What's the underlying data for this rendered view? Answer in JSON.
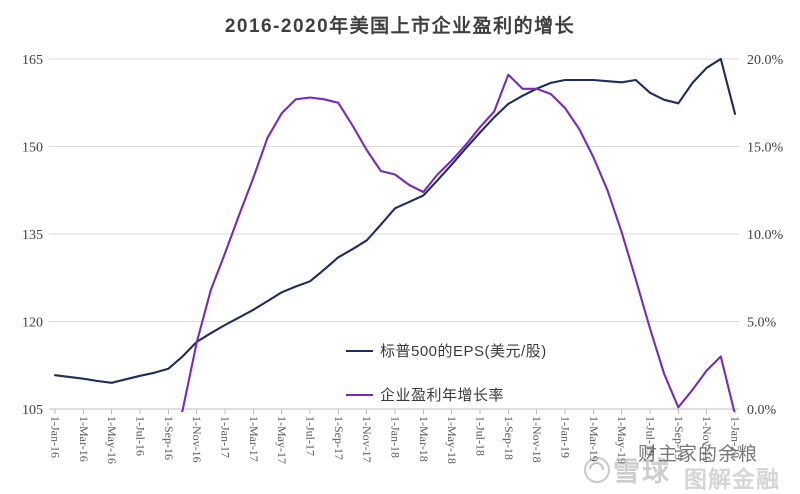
{
  "title": "2016-2020年美国上市企业盈利的增长",
  "legend": [
    {
      "label": "标普500的EPS(美元/股)",
      "color": "#1c2d5e"
    },
    {
      "label": "企业盈利年增长率",
      "color": "#772bb8"
    }
  ],
  "watermark": {
    "logo_icon": "snowball-circle",
    "brand": "雪球",
    "channel": "图解金融",
    "author": "财主家的余粮"
  },
  "colors": {
    "background": "#ffffff",
    "grid": "#d9d9d9",
    "axis": "#bfbfbf",
    "axis_text": "#404040",
    "x_tick_text": "#595959",
    "title_text": "#3f3f3f",
    "series_eps": "#1c2d5e",
    "series_growth": "#772bb8"
  },
  "chart_data": {
    "type": "line",
    "title": "2016-2020年美国上市企业盈利的增长",
    "grid": "horizontal",
    "legend_position": "inside-center-right",
    "x_start": "2016-01",
    "x_end": "2020-01",
    "x_step_months": 1,
    "n_points": 49,
    "x_tick_labels": [
      "1-Jan-16",
      "1-Mar-16",
      "1-May-16",
      "1-Jul-16",
      "1-Sep-16",
      "1-Nov-16",
      "1-Jan-17",
      "1-Mar-17",
      "1-May-17",
      "1-Jul-17",
      "1-Sep-17",
      "1-Nov-17",
      "1-Jan-18",
      "1-Mar-18",
      "1-May-18",
      "1-Jul-18",
      "1-Sep-18",
      "1-Nov-18",
      "1-Jan-19",
      "1-Mar-19",
      "1-May-19",
      "1-Jul-19",
      "1-Sep-19",
      "1-Nov-19",
      "1-Jan-20"
    ],
    "left_axis": {
      "ticks": [
        "165",
        "150",
        "135",
        "120",
        "105"
      ],
      "tick_values": [
        165,
        150,
        135,
        120,
        105
      ],
      "range": [
        105,
        165
      ]
    },
    "right_axis": {
      "ticks": [
        "20.0%",
        "15.0%",
        "10.0%",
        "5.0%",
        "0.0%"
      ],
      "tick_values": [
        20,
        15,
        10,
        5,
        0
      ],
      "range": [
        0,
        20
      ]
    },
    "series": [
      {
        "name": "标普500的EPS(美元/股)",
        "axis": "left",
        "color": "#1c2d5e",
        "values": [
          110.8,
          110.5,
          110.2,
          109.8,
          109.5,
          110.1,
          110.7,
          111.2,
          111.9,
          114.0,
          116.5,
          118.0,
          119.4,
          120.7,
          122.0,
          123.5,
          125.0,
          126.0,
          126.9,
          128.9,
          131.0,
          132.4,
          133.9,
          136.6,
          139.4,
          140.5,
          141.6,
          144.2,
          146.9,
          149.7,
          152.4,
          155.0,
          157.3,
          158.7,
          159.9,
          160.9,
          161.4,
          161.4,
          161.4,
          161.2,
          161.0,
          161.4,
          159.2,
          158.0,
          157.4,
          160.9,
          163.5,
          165.0,
          155.6
        ]
      },
      {
        "name": "企业盈利年增长率",
        "axis": "right",
        "color": "#772bb8",
        "values": [
          null,
          null,
          null,
          null,
          null,
          null,
          null,
          null,
          -2.0,
          -0.1,
          3.8,
          6.8,
          8.9,
          11.1,
          13.2,
          15.5,
          16.9,
          17.7,
          17.8,
          17.7,
          17.5,
          16.2,
          14.8,
          13.6,
          13.4,
          12.8,
          12.4,
          13.4,
          14.2,
          15.1,
          16.1,
          17.0,
          19.1,
          18.3,
          18.3,
          18.0,
          17.2,
          16.0,
          14.4,
          12.5,
          10.1,
          7.4,
          4.6,
          2.0,
          0.1,
          1.1,
          2.2,
          3.0,
          -0.3
        ]
      }
    ]
  }
}
